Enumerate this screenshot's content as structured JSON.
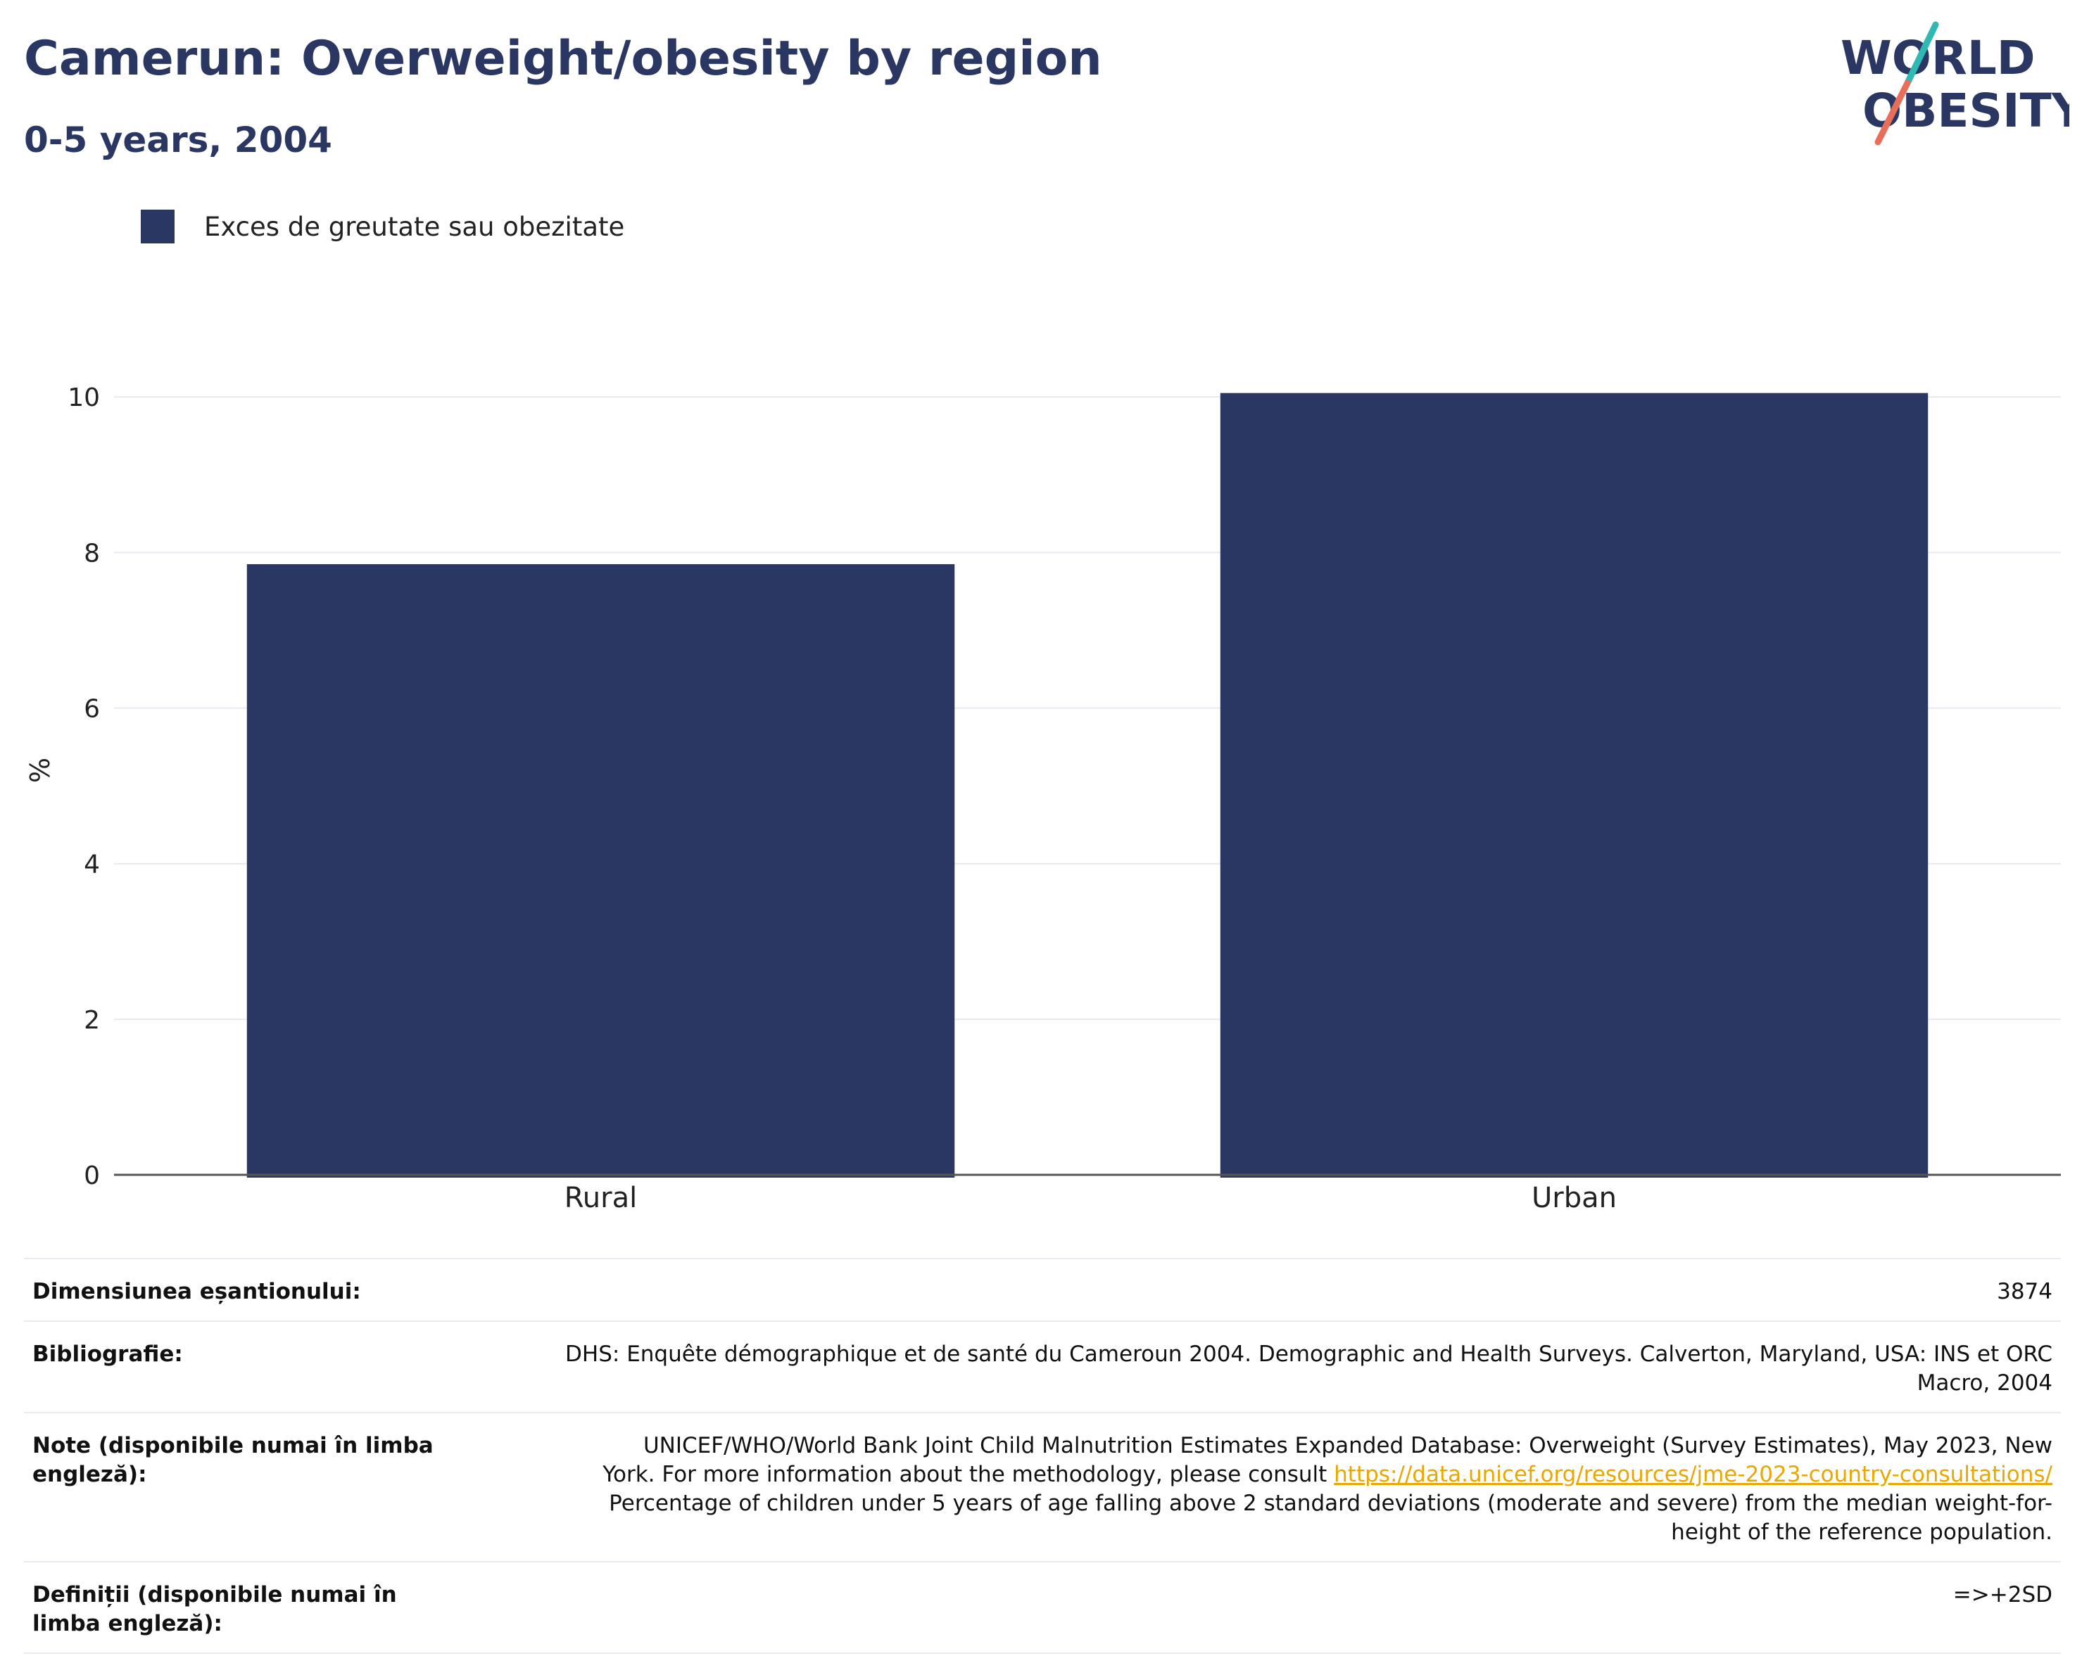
{
  "header": {
    "title": "Camerun: Overweight/obesity by region",
    "subtitle": "0-5 years, 2004"
  },
  "logo": {
    "line1": "WORLD",
    "line2": "OBESITY",
    "colors": {
      "text": "#2b3763",
      "slash_top": "#2fb9b5",
      "slash_bottom": "#e86e5a"
    }
  },
  "chart_data": {
    "type": "bar",
    "categories": [
      "Rural",
      "Urban"
    ],
    "series": [
      {
        "name": "Exces de greutate sau obezitate",
        "values": [
          7.85,
          10.05
        ],
        "color": "#2b3763"
      }
    ],
    "title": "Camerun: Overweight/obesity by region",
    "subtitle": "0-5 years, 2004",
    "xlabel": "",
    "ylabel": "%",
    "ylim": [
      0,
      10.4
    ],
    "yticks": [
      0,
      2,
      4,
      6,
      8,
      10
    ],
    "grid": true,
    "legend_position": "top-left"
  },
  "info": {
    "sample_label": "Dimensiunea eșantionului:",
    "sample_value": "3874",
    "biblio_label": "Bibliografie:",
    "biblio_line1": "DHS: Enquête démographique et de santé du Cameroun 2004. Demographic and Health Surveys. Calverton, Maryland, USA: INS et ORC",
    "biblio_line2": "Macro, 2004",
    "notes_label": "Note (disponibile numai în limba engleză):",
    "notes_line1": "UNICEF/WHO/World Bank Joint Child Malnutrition Estimates Expanded Database: Overweight (Survey Estimates), May 2023, New",
    "notes_line2_prefix": "York. For more information about the methodology, please consult ",
    "notes_link": "https://data.unicef.org/resources/jme-2023-country-consultations/",
    "notes_line3": "Percentage of children under 5 years of age falling above 2 standard deviations (moderate and severe) from the median weight-for-",
    "notes_line4": "height of the reference population.",
    "definitions_label": "Definiții (disponibile numai în limba engleză):",
    "definitions_value": "=>+2SD"
  }
}
